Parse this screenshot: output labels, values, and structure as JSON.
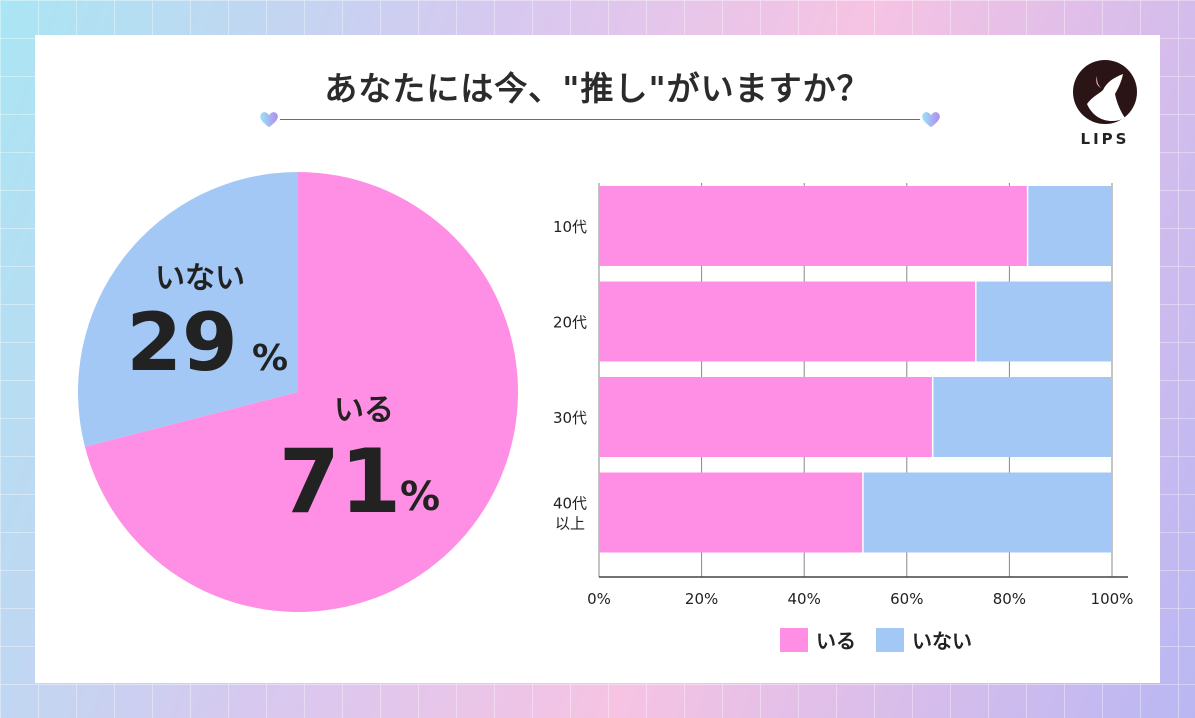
{
  "title": "あなたには今、\"推し\"がいますか？",
  "logo": {
    "text": "LIPS"
  },
  "colors": {
    "yes": "#ff8fe4",
    "no": "#a3c8f6",
    "title_rule": "#6b5fae"
  },
  "chart_data": [
    {
      "type": "pie",
      "slices": [
        {
          "label": "いる",
          "value": 71,
          "display": "71",
          "unit": "%"
        },
        {
          "label": "いない",
          "value": 29,
          "display": "29",
          "unit": "%"
        }
      ]
    },
    {
      "type": "bar",
      "orientation": "horizontal",
      "stacked": true,
      "categories": [
        "10代",
        "20代",
        "30代",
        "40代\n以上"
      ],
      "series": [
        {
          "name": "いる",
          "values": [
            83.4,
            73.3,
            64.9,
            51.3
          ]
        },
        {
          "name": "いない",
          "values": [
            16.6,
            26.7,
            35.1,
            48.7
          ]
        }
      ],
      "xlim": [
        0,
        100
      ],
      "xticks": [
        "0%",
        "20%",
        "40%",
        "60%",
        "80%",
        "100%"
      ],
      "grid": true,
      "legend": "bottom"
    }
  ]
}
